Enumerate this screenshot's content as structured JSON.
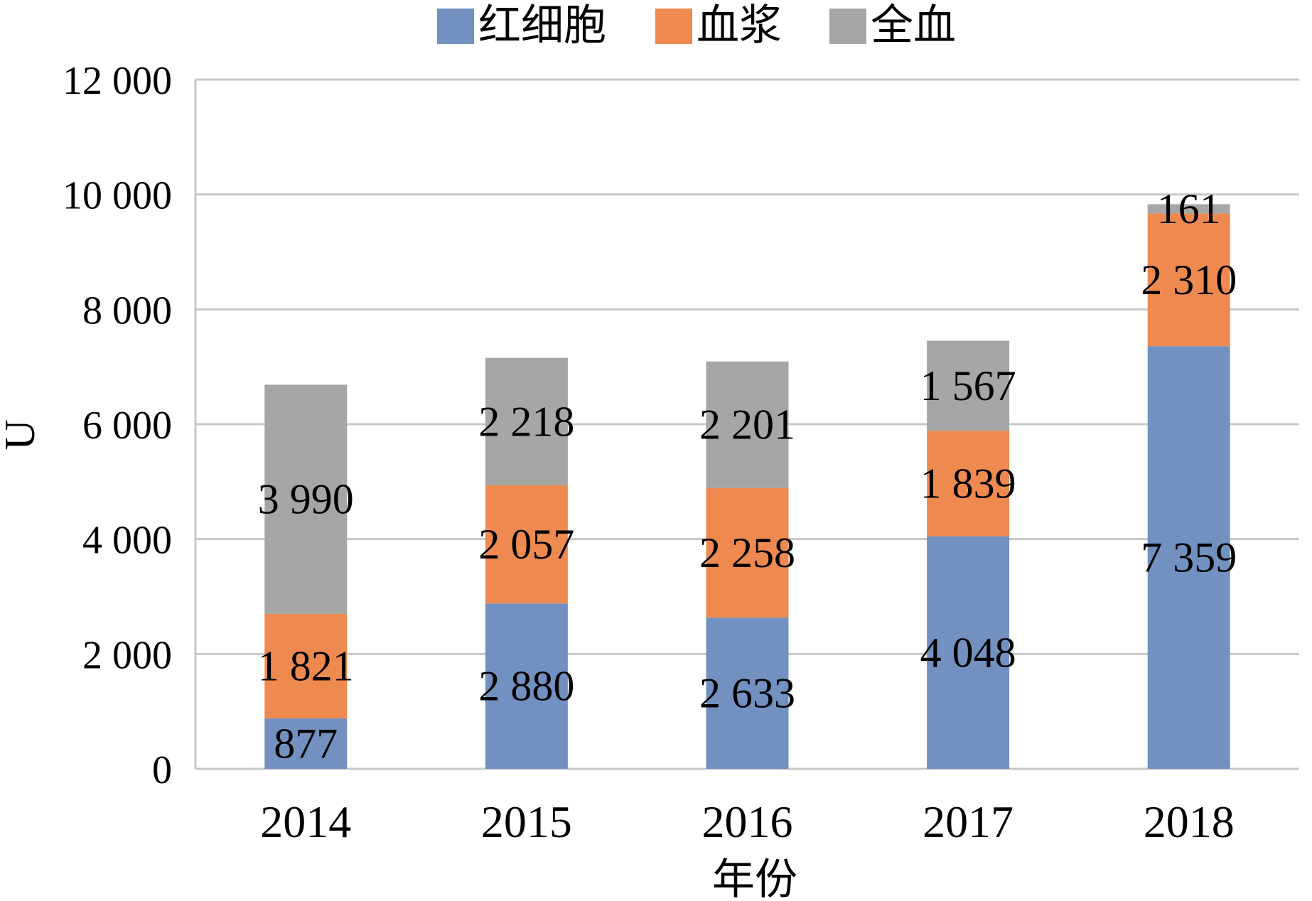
{
  "chart_data": {
    "type": "bar",
    "stacked": true,
    "categories": [
      "2014",
      "2015",
      "2016",
      "2017",
      "2018"
    ],
    "series": [
      {
        "name": "红细胞",
        "color": "#7291c1",
        "values": [
          877,
          2880,
          2633,
          4048,
          7359
        ]
      },
      {
        "name": "血浆",
        "color": "#ee8a50",
        "values": [
          1821,
          2057,
          2258,
          1839,
          2310
        ]
      },
      {
        "name": "全血",
        "color": "#a6a6a6",
        "values": [
          3990,
          2218,
          2201,
          1567,
          161
        ]
      }
    ],
    "data_labels": [
      [
        "877",
        "2 880",
        "2 633",
        "4 048",
        "7 359"
      ],
      [
        "1 821",
        "2 057",
        "2 258",
        "1 839",
        "2 310"
      ],
      [
        "3 990",
        "2 218",
        "2 201",
        "1 567",
        "161"
      ]
    ],
    "xlabel": "年份",
    "ylabel": "U",
    "ylim": [
      0,
      12000
    ],
    "yticks": [
      0,
      2000,
      4000,
      6000,
      8000,
      10000,
      12000
    ],
    "ytick_labels": [
      "0",
      "2 000",
      "4 000",
      "6 000",
      "8 000",
      "10 000",
      "12 000"
    ],
    "grid": true,
    "legend_position": "top"
  }
}
